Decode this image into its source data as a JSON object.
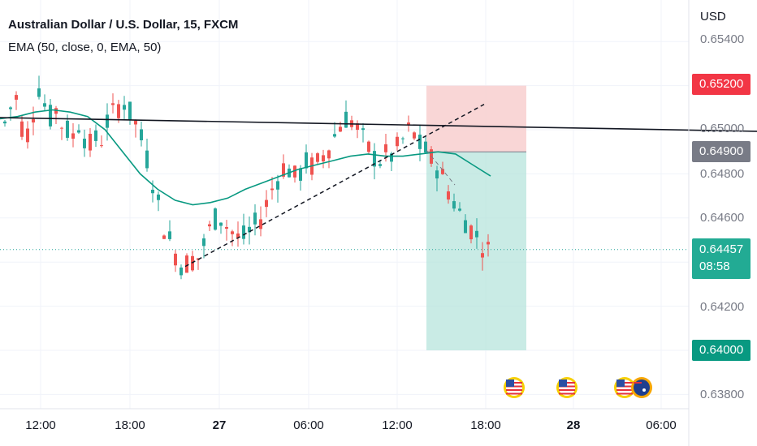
{
  "header": {
    "title": "Australian Dollar / U.S. Dollar, 15, FXCM",
    "indicator": "EMA (50, close, 0, EMA, 50)"
  },
  "price_axis": {
    "currency": "USD",
    "ticks": [
      "0.65400",
      "0.65000",
      "0.64800",
      "0.64600",
      "0.64200",
      "0.63800"
    ]
  },
  "time_axis": {
    "labels": [
      "12:00",
      "18:00",
      "27",
      "06:00",
      "12:00",
      "18:00",
      "28",
      "06:00"
    ]
  },
  "tags": {
    "stop_loss": "0.65200",
    "entry": "0.64900",
    "current_price": "0.64457",
    "countdown": "08:58",
    "take_profit": "0.64000"
  },
  "colors": {
    "up": "#26a69a",
    "down": "#ef5350",
    "ema": "#089981",
    "stop_zone": "#f8cfcf",
    "target_zone": "#b7e4dc",
    "entry_tag": "#787b86"
  },
  "chart_data": {
    "type": "candlestick",
    "symbol": "Australian Dollar / U.S. Dollar",
    "timeframe": "15",
    "source": "FXCM",
    "ylim": [
      0.6375,
      0.655
    ],
    "close_series": [
      0.6503,
      0.651,
      0.6515,
      0.6502,
      0.6498,
      0.6508,
      0.652,
      0.6512,
      0.6505,
      0.651,
      0.6503,
      0.65,
      0.6496,
      0.6504,
      0.6498,
      0.6492,
      0.6496,
      0.6494,
      0.6503,
      0.6506,
      0.651,
      0.6514,
      0.6508,
      0.6505,
      0.6498,
      0.649,
      0.648,
      0.647,
      0.6458,
      0.6452,
      0.6446,
      0.644,
      0.6438,
      0.6442,
      0.644,
      0.6445,
      0.6452,
      0.6458,
      0.6462,
      0.6458,
      0.6455,
      0.6452,
      0.645,
      0.6452,
      0.6455,
      0.6458,
      0.6462,
      0.647,
      0.6476,
      0.648,
      0.6485,
      0.648,
      0.6477,
      0.6483,
      0.6486,
      0.6482,
      0.6486,
      0.649,
      0.6494,
      0.6499,
      0.6504,
      0.6506,
      0.6503,
      0.6499,
      0.6494,
      0.649,
      0.6487,
      0.6486,
      0.6489,
      0.6488,
      0.6492,
      0.6496,
      0.65,
      0.6497,
      0.6492,
      0.649,
      0.6486,
      0.6483,
      0.6478,
      0.6472,
      0.6467,
      0.6462,
      0.6459,
      0.6455,
      0.6452,
      0.6448,
      0.6445
    ],
    "ema_50": [
      0.6505,
      0.6506,
      0.6508,
      0.6509,
      0.6508,
      0.6506,
      0.65,
      0.649,
      0.648,
      0.6473,
      0.6468,
      0.6466,
      0.6467,
      0.6469,
      0.6473,
      0.6476,
      0.6479,
      0.6482,
      0.6484,
      0.6486,
      0.6488,
      0.6489,
      0.6488,
      0.6488,
      0.6489,
      0.649,
      0.6489,
      0.6484,
      0.6479
    ],
    "trendline_resistance": [
      [
        0,
        0.65055
      ],
      [
        932,
        0.64993
      ]
    ],
    "trendline_support": [
      [
        228,
        0.6438
      ],
      [
        596,
        0.65115
      ]
    ],
    "position": {
      "type": "short",
      "entry": 0.649,
      "stop_loss": 0.652,
      "take_profit": 0.64
    },
    "current_price": 0.64457,
    "events": [
      {
        "type": "us-flag",
        "at": "≈16:00 (27th)"
      },
      {
        "type": "us-flag",
        "at": "≈21:00 (27th)"
      },
      {
        "type": "us-flag",
        "at": "≈03:00 (28th)"
      },
      {
        "type": "au-flag",
        "at": "≈04:00 (28th)"
      }
    ]
  }
}
